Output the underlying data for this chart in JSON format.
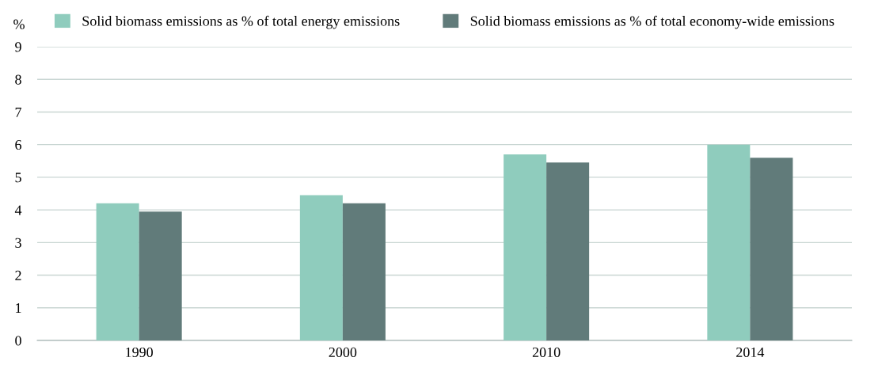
{
  "chart_data": {
    "type": "bar",
    "ylabel": "%",
    "categories": [
      "1990",
      "2000",
      "2010",
      "2014"
    ],
    "series": [
      {
        "name": "Solid biomass emissions as % of total energy emissions",
        "color": "#8fccbd",
        "values": [
          4.2,
          4.45,
          5.7,
          6.0
        ]
      },
      {
        "name": "Solid biomass emissions as % of total economy-wide emissions",
        "color": "#617b7a",
        "values": [
          3.95,
          4.2,
          5.45,
          5.6
        ]
      }
    ],
    "ylim": [
      0,
      9
    ],
    "yticks": [
      0,
      1,
      2,
      3,
      4,
      5,
      6,
      7,
      8,
      9
    ],
    "grid": "y",
    "legend": "top"
  }
}
